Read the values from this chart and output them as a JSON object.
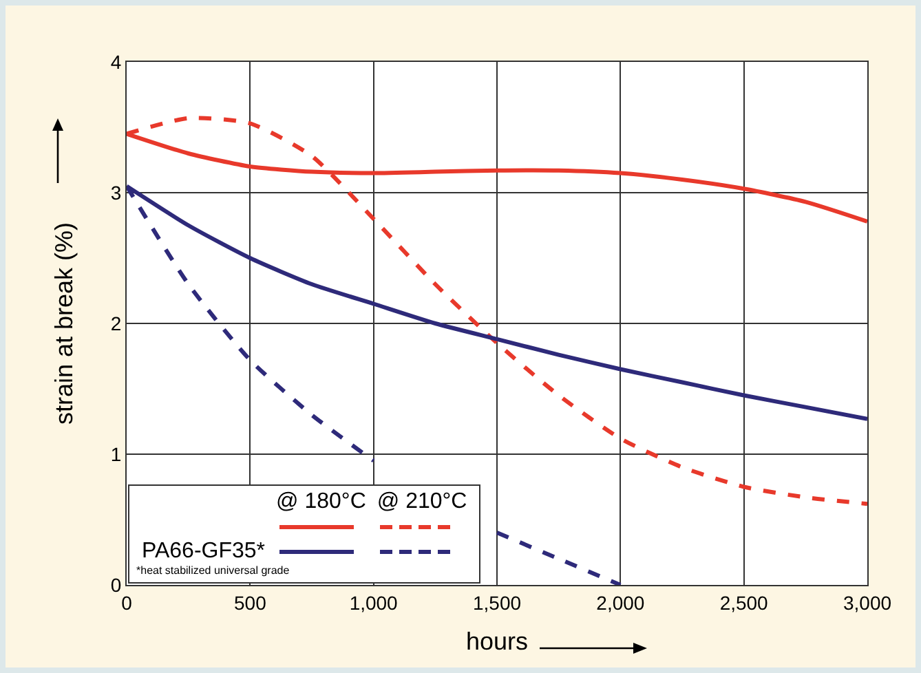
{
  "chart_data": {
    "type": "line",
    "xlabel": "hours",
    "ylabel": "strain at break (%)",
    "x": [
      0,
      250,
      500,
      750,
      1000,
      1250,
      1500,
      1750,
      2000,
      2250,
      2500,
      2750,
      3000
    ],
    "series": [
      {
        "color": "#e8392b",
        "line_style": "solid",
        "values": [
          3.45,
          3.3,
          3.2,
          3.16,
          3.15,
          3.16,
          3.17,
          3.17,
          3.15,
          3.1,
          3.03,
          2.93,
          2.78
        ]
      },
      {
        "color": "#e8392b",
        "line_style": "dashed",
        "values": [
          3.45,
          3.57,
          3.53,
          3.28,
          2.8,
          2.3,
          1.85,
          1.45,
          1.12,
          0.9,
          0.75,
          0.67,
          0.62
        ]
      },
      {
        "name": "PA66-GF35*",
        "color": "#2e2a7a",
        "line_style": "solid",
        "values": [
          3.05,
          2.75,
          2.5,
          2.3,
          2.15,
          2.0,
          1.88,
          1.76,
          1.65,
          1.55,
          1.45,
          1.36,
          1.27
        ]
      },
      {
        "color": "#2e2a7a",
        "line_style": "dashed",
        "values": [
          3.05,
          2.3,
          1.72,
          1.3,
          0.95,
          null,
          0.4,
          0.2,
          0,
          null,
          null,
          null,
          null
        ]
      }
    ],
    "xlim": [
      0,
      3000
    ],
    "xticks": [
      0,
      500,
      {
        "value": 1000,
        "label": "1,000"
      },
      {
        "value": 1500,
        "label": "1,500"
      },
      {
        "value": 2000,
        "label": "2,000"
      },
      {
        "value": 2500,
        "label": "2,500"
      },
      {
        "value": 3000,
        "label": "3,000"
      }
    ],
    "ylim": [
      0,
      4
    ],
    "yticks": [
      0,
      1,
      2,
      3,
      4
    ],
    "grid": true,
    "legend": "bottom left",
    "marker": "none",
    "annotations": [
      "@ 180°C",
      "@ 210°C",
      "*heat stabilized universal grade"
    ]
  }
}
